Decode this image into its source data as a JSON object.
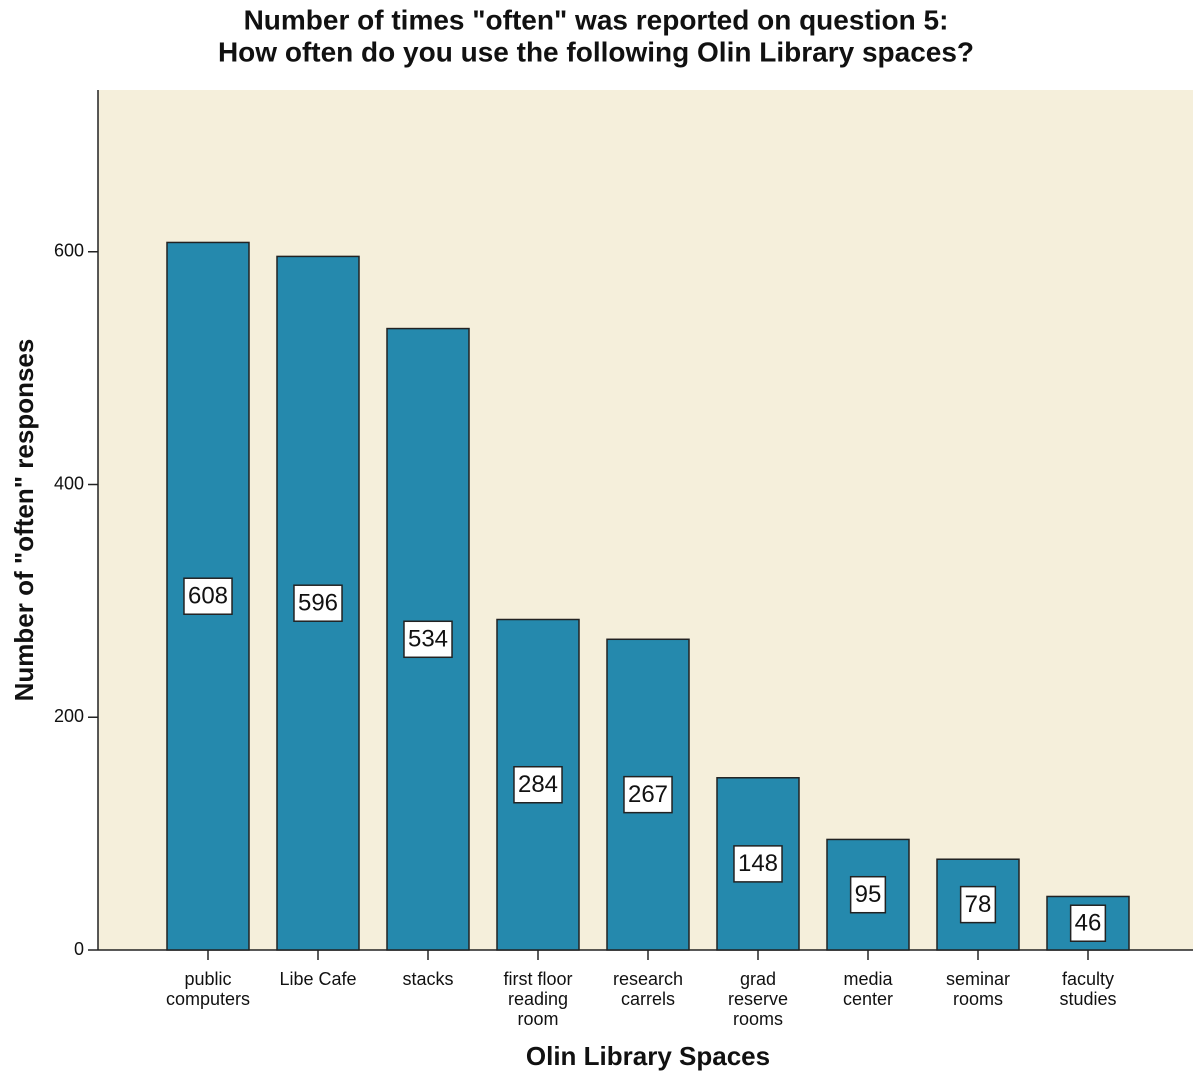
{
  "chart_data": {
    "type": "bar",
    "title": [
      "Number of times \"often\" was reported on question 5:",
      "How often do you use the following Olin Library spaces?"
    ],
    "x_label": "Olin Library Spaces",
    "y_label": "Number of \"often\" responses",
    "categories": [
      "public computers",
      "Libe Cafe",
      "stacks",
      "first floor reading room",
      "research carrels",
      "grad reserve rooms",
      "media center",
      "seminar rooms",
      "faculty studies"
    ],
    "values": [
      608,
      596,
      534,
      284,
      267,
      148,
      95,
      78,
      46
    ],
    "color": "#2589ad",
    "ylim": [
      0,
      739
    ],
    "yticks": [
      0,
      200,
      400,
      600
    ],
    "grid": false
  }
}
